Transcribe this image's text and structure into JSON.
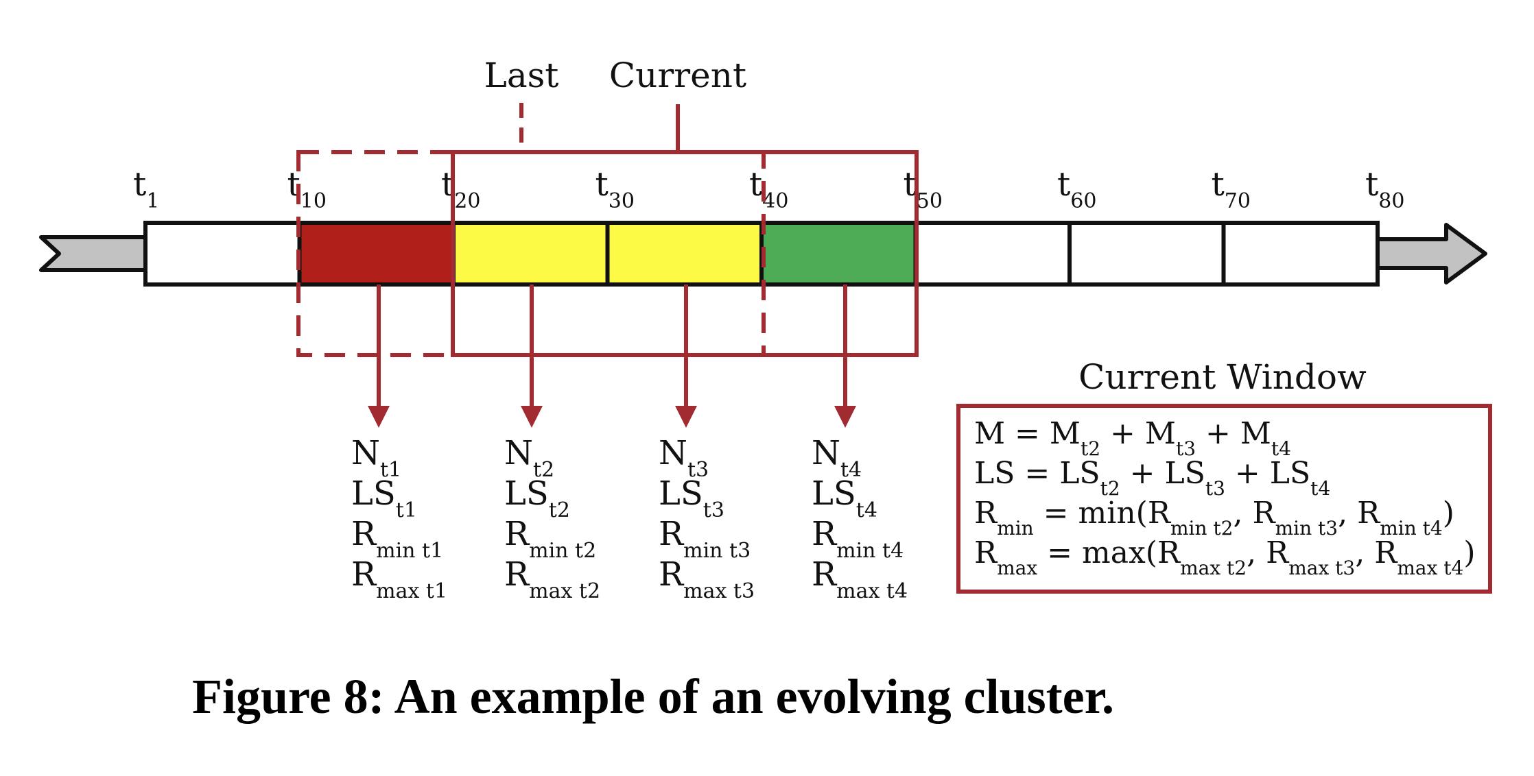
{
  "window_labels": {
    "last": "Last",
    "current": "Current"
  },
  "ticks": [
    {
      "t": "t",
      "sub": "1"
    },
    {
      "t": "t",
      "sub": "10"
    },
    {
      "t": "t",
      "sub": "20"
    },
    {
      "t": "t",
      "sub": "30"
    },
    {
      "t": "t",
      "sub": "40"
    },
    {
      "t": "t",
      "sub": "50"
    },
    {
      "t": "t",
      "sub": "60"
    },
    {
      "t": "t",
      "sub": "70"
    },
    {
      "t": "t",
      "sub": "80"
    }
  ],
  "cells": [
    {
      "color": "#ffffff"
    },
    {
      "color": "#b01f1a"
    },
    {
      "color": "#fdfa46"
    },
    {
      "color": "#fdfa46"
    },
    {
      "color": "#4eac57"
    },
    {
      "color": "#ffffff"
    },
    {
      "color": "#ffffff"
    },
    {
      "color": "#ffffff"
    }
  ],
  "colors": {
    "frame": "#a12b30",
    "arrow_body": "#c2c2c2",
    "stroke": "#111111"
  },
  "stats": [
    {
      "lines": [
        {
          "b": "N",
          "s": "t1"
        },
        {
          "b": "LS",
          "s": "t1"
        },
        {
          "b": "R",
          "s": "min t1"
        },
        {
          "b": "R",
          "s": "max t1"
        }
      ]
    },
    {
      "lines": [
        {
          "b": "N",
          "s": "t2"
        },
        {
          "b": "LS",
          "s": "t2"
        },
        {
          "b": "R",
          "s": "min t2"
        },
        {
          "b": "R",
          "s": "max t2"
        }
      ]
    },
    {
      "lines": [
        {
          "b": "N",
          "s": "t3"
        },
        {
          "b": "LS",
          "s": "t3"
        },
        {
          "b": "R",
          "s": "min t3"
        },
        {
          "b": "R",
          "s": "max t3"
        }
      ]
    },
    {
      "lines": [
        {
          "b": "N",
          "s": "t4"
        },
        {
          "b": "LS",
          "s": "t4"
        },
        {
          "b": "R",
          "s": "min t4"
        },
        {
          "b": "R",
          "s": "max t4"
        }
      ]
    }
  ],
  "current_window": {
    "title": "Current Window",
    "formulas": [
      [
        {
          "t": "M = M"
        },
        {
          "s": "t2"
        },
        {
          "t": " + M"
        },
        {
          "s": "t3"
        },
        {
          "t": "  + M"
        },
        {
          "s": "t4"
        }
      ],
      [
        {
          "t": "LS = LS"
        },
        {
          "s": "t2"
        },
        {
          "t": " + LS"
        },
        {
          "s": "t3"
        },
        {
          "t": " + LS"
        },
        {
          "s": "t4"
        }
      ],
      [
        {
          "t": "R"
        },
        {
          "s": "min"
        },
        {
          "t": " = min(R"
        },
        {
          "s": "min t2"
        },
        {
          "t": ", R"
        },
        {
          "s": "min t3"
        },
        {
          "t": ", R"
        },
        {
          "s": "min t4"
        },
        {
          "t": ")"
        }
      ],
      [
        {
          "t": "R"
        },
        {
          "s": "max"
        },
        {
          "t": " = max(R"
        },
        {
          "s": "max t2"
        },
        {
          "t": ", R"
        },
        {
          "s": "max t3"
        },
        {
          "t": ", R"
        },
        {
          "s": "max t4"
        },
        {
          "t": ")"
        }
      ]
    ]
  },
  "caption": "Figure 8: An example of an evolving cluster."
}
